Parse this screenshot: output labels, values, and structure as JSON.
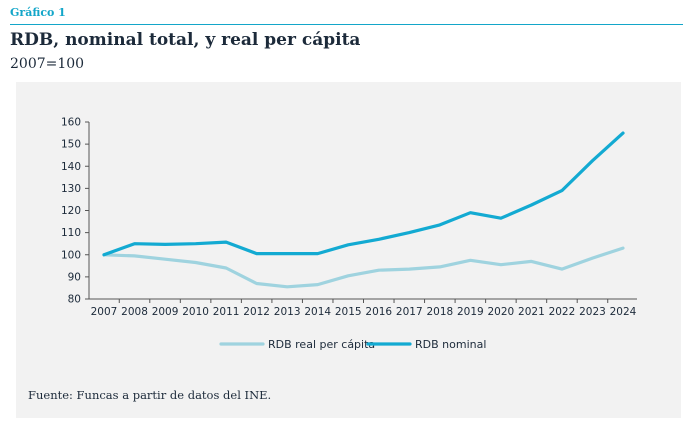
{
  "header": {
    "eyebrow": "Gráfico 1",
    "title": "RDB, nominal total, y real per cápita",
    "subtitle": "2007=100"
  },
  "source": "Fuente: Funcas a partir de datos del INE.",
  "chart_data": {
    "type": "line",
    "title": "RDB, nominal total, y real per cápita",
    "subtitle": "2007=100",
    "xlabel": "",
    "ylabel": "",
    "ylim": [
      80,
      160
    ],
    "yticks": [
      80,
      90,
      100,
      110,
      120,
      130,
      140,
      150,
      160
    ],
    "x": [
      "2007",
      "2008",
      "2009",
      "2010",
      "2011",
      "2012",
      "2013",
      "2014",
      "2015",
      "2016",
      "2017",
      "2018",
      "2019",
      "2020",
      "2021",
      "2022",
      "2023",
      "2024"
    ],
    "grid": false,
    "legend_position": "bottom",
    "series": [
      {
        "name": "RDB real per cápita",
        "color": "#9fd3df",
        "values": [
          100,
          99.5,
          98,
          96.5,
          94,
          87,
          85.5,
          86.5,
          90.5,
          93,
          93.5,
          94.5,
          97.5,
          95.5,
          97,
          93.5,
          98.5,
          103
        ]
      },
      {
        "name": "RDB nominal",
        "color": "#13aad2",
        "values": [
          100,
          105,
          104.7,
          105,
          105.7,
          100.5,
          100.5,
          100.5,
          104.5,
          107,
          110,
          113.5,
          119,
          116.5,
          122.5,
          129,
          142.5,
          155
        ]
      }
    ]
  }
}
